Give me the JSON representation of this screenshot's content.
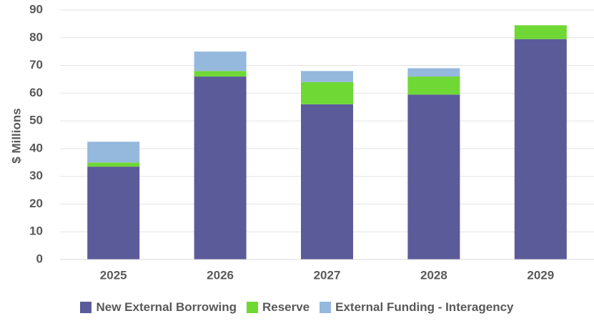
{
  "chart_data": {
    "type": "bar",
    "stacked": true,
    "categories": [
      "2025",
      "2026",
      "2027",
      "2028",
      "2029"
    ],
    "series": [
      {
        "name": "New External Borrowing",
        "color": "#5b5b9a",
        "values": [
          33.5,
          66,
          56,
          59.5,
          79.5
        ]
      },
      {
        "name": "Reserve",
        "color": "#6fd835",
        "values": [
          1.5,
          2,
          8,
          6.5,
          5
        ]
      },
      {
        "name": "External Funding - Interagency",
        "color": "#95b8dd",
        "values": [
          7.5,
          7,
          4,
          3,
          0
        ]
      }
    ],
    "ylabel": "$ Millions",
    "ylim": [
      0,
      90
    ],
    "yticks": [
      0,
      10,
      20,
      30,
      40,
      50,
      60,
      70,
      80,
      90
    ],
    "grid": true,
    "legend": "bottom"
  }
}
